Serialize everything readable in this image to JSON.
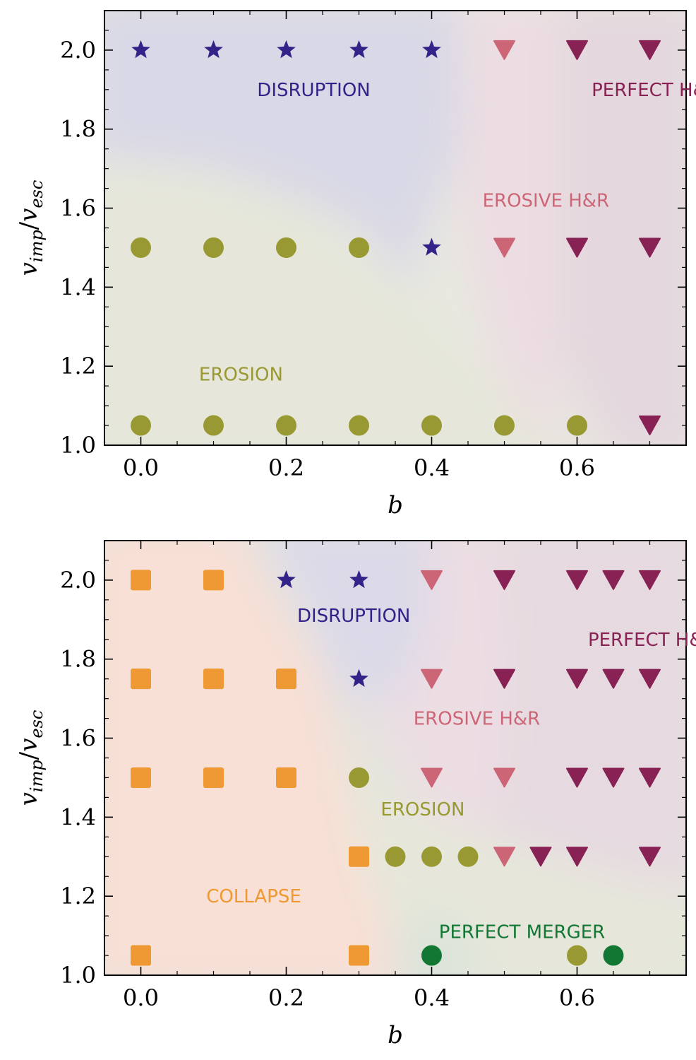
{
  "colors": {
    "disruption": "#332288",
    "erosion": "#999933",
    "erosive_hr": "#CC6677",
    "perfect_hr": "#882255",
    "collapse": "#EE9933",
    "perfect_merger": "#117733",
    "axis": "#000000"
  },
  "chart_data": [
    {
      "type": "scatter",
      "xlabel": "b",
      "ylabel": "v_imp/v_esc",
      "ylabel_main": "v",
      "ylabel_sub1": "imp",
      "ylabel_slash": "/",
      "ylabel_main2": "v",
      "ylabel_sub2": "esc",
      "xlim": [
        -0.05,
        0.75
      ],
      "ylim": [
        1.0,
        2.1
      ],
      "xticks": [
        "0.0",
        "0.2",
        "0.4",
        "0.6"
      ],
      "yticks": [
        "1.0",
        "1.2",
        "1.4",
        "1.6",
        "1.8",
        "2.0"
      ],
      "grid": false,
      "region_labels": [
        {
          "text": "DISRUPTION",
          "category": "disruption",
          "x": 0.16,
          "y": 1.9
        },
        {
          "text": "PERFECT H&R",
          "category": "perfect_hr",
          "x": 0.62,
          "y": 1.9
        },
        {
          "text": "EROSIVE H&R",
          "category": "erosive_hr",
          "x": 0.47,
          "y": 1.62
        },
        {
          "text": "EROSION",
          "category": "erosion",
          "x": 0.08,
          "y": 1.18
        }
      ],
      "series": [
        {
          "category": "disruption",
          "marker": "star",
          "points": [
            [
              0.0,
              2.0
            ],
            [
              0.1,
              2.0
            ],
            [
              0.2,
              2.0
            ],
            [
              0.3,
              2.0
            ],
            [
              0.4,
              2.0
            ],
            [
              0.4,
              1.5
            ]
          ]
        },
        {
          "category": "erosive_hr",
          "marker": "triangle",
          "points": [
            [
              0.5,
              2.0
            ],
            [
              0.5,
              1.5
            ]
          ]
        },
        {
          "category": "perfect_hr",
          "marker": "triangle",
          "points": [
            [
              0.6,
              2.0
            ],
            [
              0.7,
              2.0
            ],
            [
              0.6,
              1.5
            ],
            [
              0.7,
              1.5
            ],
            [
              0.7,
              1.05
            ]
          ]
        },
        {
          "category": "erosion",
          "marker": "circle",
          "points": [
            [
              0.0,
              1.5
            ],
            [
              0.1,
              1.5
            ],
            [
              0.2,
              1.5
            ],
            [
              0.3,
              1.5
            ],
            [
              0.0,
              1.05
            ],
            [
              0.1,
              1.05
            ],
            [
              0.2,
              1.05
            ],
            [
              0.3,
              1.05
            ],
            [
              0.4,
              1.05
            ],
            [
              0.5,
              1.05
            ],
            [
              0.6,
              1.05
            ]
          ]
        }
      ]
    },
    {
      "type": "scatter",
      "xlabel": "b",
      "ylabel": "v_imp/v_esc",
      "ylabel_main": "v",
      "ylabel_sub1": "imp",
      "ylabel_slash": "/",
      "ylabel_main2": "v",
      "ylabel_sub2": "esc",
      "xlim": [
        -0.05,
        0.75
      ],
      "ylim": [
        1.0,
        2.1
      ],
      "xticks": [
        "0.0",
        "0.2",
        "0.4",
        "0.6"
      ],
      "yticks": [
        "1.0",
        "1.2",
        "1.4",
        "1.6",
        "1.8",
        "2.0"
      ],
      "grid": false,
      "region_labels": [
        {
          "text": "DISRUPTION",
          "category": "disruption",
          "x": 0.215,
          "y": 1.91
        },
        {
          "text": "PERFECT H&R",
          "category": "perfect_hr",
          "x": 0.615,
          "y": 1.85
        },
        {
          "text": "EROSIVE H&R",
          "category": "erosive_hr",
          "x": 0.375,
          "y": 1.65
        },
        {
          "text": "EROSION",
          "category": "erosion",
          "x": 0.33,
          "y": 1.42
        },
        {
          "text": "COLLAPSE",
          "category": "collapse",
          "x": 0.09,
          "y": 1.2
        },
        {
          "text": "PERFECT MERGER",
          "category": "perfect_merger",
          "x": 0.41,
          "y": 1.11
        }
      ],
      "series": [
        {
          "category": "collapse",
          "marker": "square",
          "points": [
            [
              0.0,
              2.0
            ],
            [
              0.1,
              2.0
            ],
            [
              0.0,
              1.75
            ],
            [
              0.1,
              1.75
            ],
            [
              0.2,
              1.75
            ],
            [
              0.0,
              1.5
            ],
            [
              0.1,
              1.5
            ],
            [
              0.2,
              1.5
            ],
            [
              0.3,
              1.3
            ],
            [
              0.0,
              1.05
            ],
            [
              0.3,
              1.05
            ]
          ]
        },
        {
          "category": "disruption",
          "marker": "star",
          "points": [
            [
              0.2,
              2.0
            ],
            [
              0.3,
              2.0
            ],
            [
              0.3,
              1.75
            ]
          ]
        },
        {
          "category": "erosive_hr",
          "marker": "triangle",
          "points": [
            [
              0.4,
              2.0
            ],
            [
              0.4,
              1.75
            ],
            [
              0.4,
              1.5
            ],
            [
              0.5,
              1.5
            ],
            [
              0.5,
              1.3
            ]
          ]
        },
        {
          "category": "perfect_hr",
          "marker": "triangle",
          "points": [
            [
              0.5,
              2.0
            ],
            [
              0.6,
              2.0
            ],
            [
              0.65,
              2.0
            ],
            [
              0.7,
              2.0
            ],
            [
              0.5,
              1.75
            ],
            [
              0.6,
              1.75
            ],
            [
              0.65,
              1.75
            ],
            [
              0.7,
              1.75
            ],
            [
              0.6,
              1.5
            ],
            [
              0.65,
              1.5
            ],
            [
              0.7,
              1.5
            ],
            [
              0.55,
              1.3
            ],
            [
              0.6,
              1.3
            ],
            [
              0.7,
              1.3
            ]
          ]
        },
        {
          "category": "erosion",
          "marker": "circle",
          "points": [
            [
              0.3,
              1.5
            ],
            [
              0.35,
              1.3
            ],
            [
              0.4,
              1.3
            ],
            [
              0.45,
              1.3
            ],
            [
              0.6,
              1.05
            ]
          ]
        },
        {
          "category": "perfect_merger",
          "marker": "circle",
          "points": [
            [
              0.4,
              1.05
            ],
            [
              0.65,
              1.05
            ]
          ]
        }
      ]
    }
  ]
}
